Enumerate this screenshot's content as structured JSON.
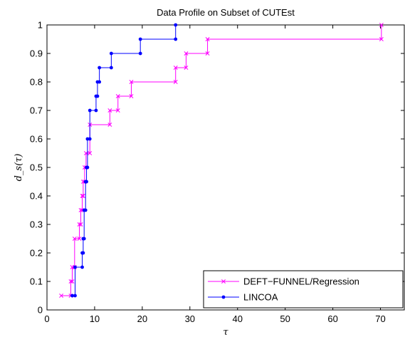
{
  "chart_data": {
    "type": "line",
    "title": "Data Profile on Subset of CUTEst",
    "xlabel": "τ",
    "ylabel": "d_s(τ)",
    "xlim": [
      0,
      75
    ],
    "ylim": [
      0,
      1
    ],
    "xticks": [
      "0",
      "10",
      "20",
      "30",
      "40",
      "50",
      "60",
      "70"
    ],
    "yticks": [
      "0",
      "0.1",
      "0.2",
      "0.3",
      "0.4",
      "0.5",
      "0.6",
      "0.7",
      "0.8",
      "0.9",
      "1"
    ],
    "legend_position": "bottom-right",
    "step": true,
    "series": [
      {
        "name": "DEFT−FUNNEL/Regression",
        "color": "#ff00ff",
        "marker": "x",
        "x": [
          3,
          5,
          5.3,
          5.8,
          6.8,
          7.1,
          7.4,
          7.6,
          7.9,
          8.2,
          9,
          13.2,
          14.9,
          17.7,
          27,
          29.2,
          33.7,
          70.2
        ],
        "y": [
          0.05,
          0.1,
          0.15,
          0.25,
          0.3,
          0.35,
          0.4,
          0.45,
          0.5,
          0.55,
          0.65,
          0.7,
          0.75,
          0.8,
          0.85,
          0.9,
          0.95,
          1.0
        ]
      },
      {
        "name": "LINCOA",
        "color": "#0000ff",
        "marker": "dot",
        "x": [
          5.3,
          5.9,
          7.4,
          7.6,
          7.8,
          8.1,
          8.3,
          8.5,
          9,
          10.3,
          10.6,
          11,
          13.5,
          19.6,
          27
        ],
        "y": [
          0.05,
          0.15,
          0.2,
          0.25,
          0.35,
          0.45,
          0.5,
          0.6,
          0.7,
          0.75,
          0.8,
          0.85,
          0.9,
          0.95,
          1.0
        ]
      }
    ]
  }
}
